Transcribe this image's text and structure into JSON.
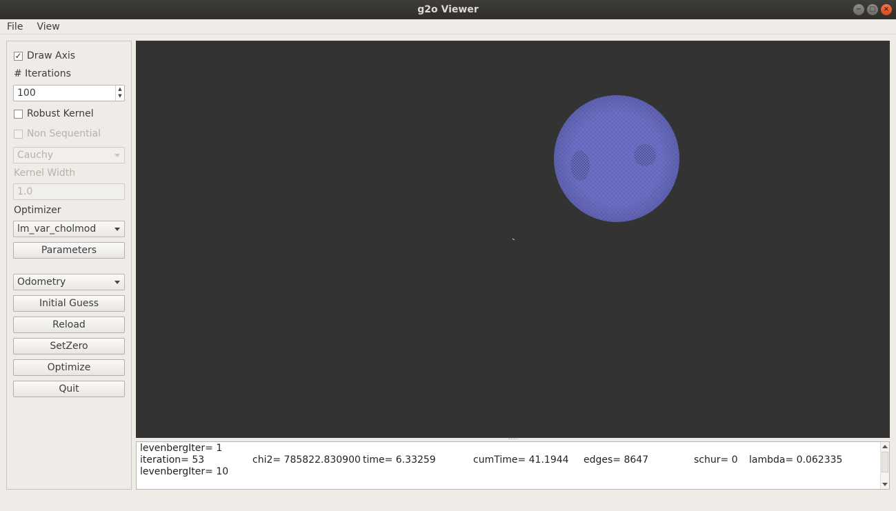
{
  "window": {
    "title": "g2o Viewer"
  },
  "menubar": {
    "file": "File",
    "view": "View"
  },
  "panel": {
    "draw_axis": {
      "label": "Draw Axis",
      "checked": true
    },
    "iterations_label": "# Iterations",
    "iterations_value": "100",
    "robust_kernel": {
      "label": "Robust Kernel",
      "checked": false
    },
    "non_sequential": {
      "label": "Non Sequential",
      "checked": false,
      "enabled": false
    },
    "kernel_type": "Cauchy",
    "kernel_width_label": "Kernel Width",
    "kernel_width_value": "1.0",
    "optimizer_label": "Optimizer",
    "optimizer_value": "lm_var_cholmod",
    "parameters_button": "Parameters",
    "initial_guess_mode": "Odometry",
    "initial_guess_button": "Initial Guess",
    "reload_button": "Reload",
    "setzero_button": "SetZero",
    "optimize_button": "Optimize",
    "quit_button": "Quit"
  },
  "viewport": {
    "background": "#333333",
    "mesh_color": "#6b6fc4"
  },
  "log": {
    "line1": "levenbergIter= 1",
    "line2": {
      "iteration": "iteration= 53",
      "chi2": "chi2= 785822.830900",
      "time": "time= 6.33259",
      "cumTime": "cumTime= 41.1944",
      "edges": "edges= 8647",
      "schur": "schur= 0",
      "lambda": "lambda= 0.062335"
    },
    "line3": "levenbergIter= 10"
  }
}
